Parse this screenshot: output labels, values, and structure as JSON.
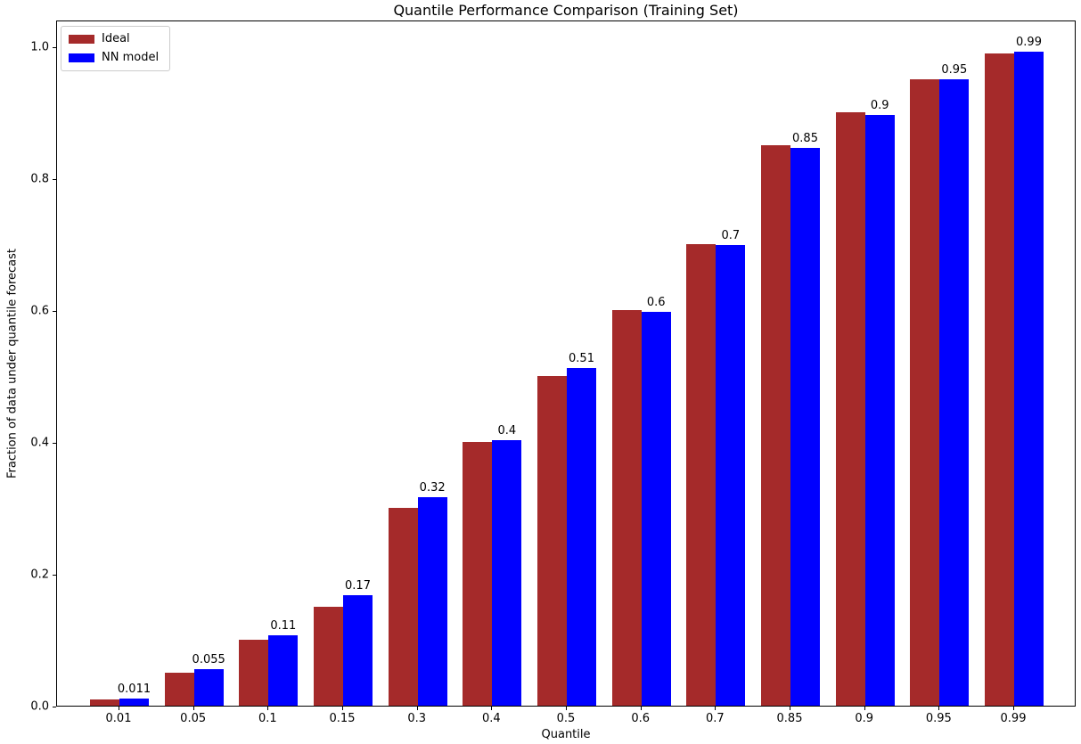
{
  "chart_data": {
    "type": "bar",
    "title": "Quantile Performance Comparison (Training Set)",
    "xlabel": "Quantile",
    "ylabel": "Fraction of data under quantile forecast",
    "categories": [
      "0.01",
      "0.05",
      "0.1",
      "0.15",
      "0.3",
      "0.4",
      "0.5",
      "0.6",
      "0.7",
      "0.85",
      "0.9",
      "0.95",
      "0.99"
    ],
    "series": [
      {
        "name": "Ideal",
        "color": "#A52A2A",
        "values": [
          0.01,
          0.05,
          0.1,
          0.15,
          0.3,
          0.4,
          0.5,
          0.6,
          0.7,
          0.85,
          0.9,
          0.95,
          0.99
        ]
      },
      {
        "name": "NN model",
        "color": "#0000FF",
        "values": [
          0.011,
          0.055,
          0.107,
          0.167,
          0.316,
          0.403,
          0.512,
          0.597,
          0.699,
          0.846,
          0.897,
          0.951,
          0.992
        ],
        "bar_labels": [
          "0.011",
          "0.055",
          "0.11",
          "0.17",
          "0.32",
          "0.4",
          "0.51",
          "0.6",
          "0.7",
          "0.85",
          "0.9",
          "0.95",
          "0.99"
        ]
      }
    ],
    "yticks": [
      0.0,
      0.2,
      0.4,
      0.6,
      0.8,
      1.0
    ],
    "ytick_labels": [
      "0.0",
      "0.2",
      "0.4",
      "0.6",
      "0.8",
      "1.0"
    ],
    "ylim": [
      0,
      1.041
    ],
    "grid": false,
    "legend_position": "upper left",
    "background_color": "#ffffff",
    "axis_color": "#000000"
  }
}
